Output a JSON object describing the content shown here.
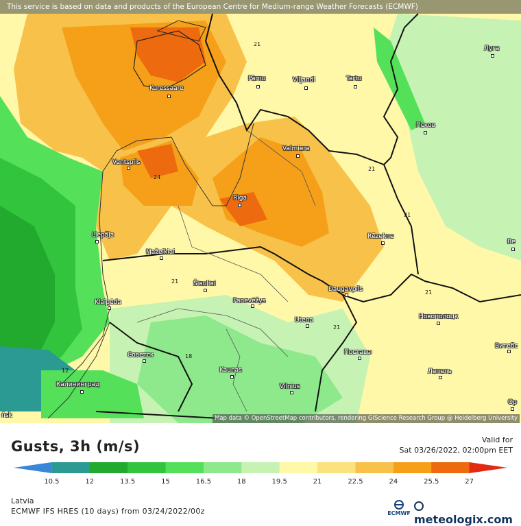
{
  "map": {
    "attribution_top": "This service is based on data and products of the European Centre for Medium-range Weather Forecasts (ECMWF)",
    "attribution_bottom": "Map data © OpenStreetMap contributors, rendering GIScience Research Group @ Heidelberg University",
    "cities": [
      {
        "name": "Kuressaare"
      },
      {
        "name": "Pärnu"
      },
      {
        "name": "Viljandi"
      },
      {
        "name": "Tartu"
      },
      {
        "name": "Луга"
      },
      {
        "name": "Псков"
      },
      {
        "name": "Valmiera"
      },
      {
        "name": "Ventspils"
      },
      {
        "name": "Riga"
      },
      {
        "name": "Liepāja"
      },
      {
        "name": "Rēzekne"
      },
      {
        "name": "Mažeikiai"
      },
      {
        "name": "Šiauliai"
      },
      {
        "name": "Klaipėda"
      },
      {
        "name": "Panevėžys"
      },
      {
        "name": "Daugavpils"
      },
      {
        "name": "Новополоцк"
      },
      {
        "name": "Utena"
      },
      {
        "name": "Советск"
      },
      {
        "name": "Поставы"
      },
      {
        "name": "Витебс"
      },
      {
        "name": "Kaunas"
      },
      {
        "name": "Калининград"
      },
      {
        "name": "Лепель"
      },
      {
        "name": "Vilnius"
      },
      {
        "name": "Ор"
      },
      {
        "name": "Ве"
      },
      {
        "name": "ńsk"
      }
    ],
    "contour_labels": [
      "21",
      "24",
      "21",
      "21",
      "21",
      "21",
      "21",
      "18",
      "12"
    ]
  },
  "legend": {
    "title": "Gusts, 3h (m/s)",
    "valid_label": "Valid for",
    "valid_time": "Sat 03/26/2022, 02:00pm EET",
    "colors": [
      "#3a86d8",
      "#2a9a92",
      "#22aa2e",
      "#33c43e",
      "#55e05a",
      "#8ee88c",
      "#c6f3b4",
      "#fff8a8",
      "#fbe27c",
      "#f8c24a",
      "#f5a018",
      "#ee6a0e",
      "#e22a12"
    ],
    "ticks": [
      "10.5",
      "12",
      "13.5",
      "15",
      "16.5",
      "18",
      "19.5",
      "21",
      "22.5",
      "24",
      "25.5",
      "27"
    ]
  },
  "footer": {
    "region": "Latvia",
    "model": "ECMWF IFS HRES (10 days) from 03/24/2022/00z",
    "ecmwf_logo": "ECMWF",
    "brand_logo": "meteologix.com"
  }
}
